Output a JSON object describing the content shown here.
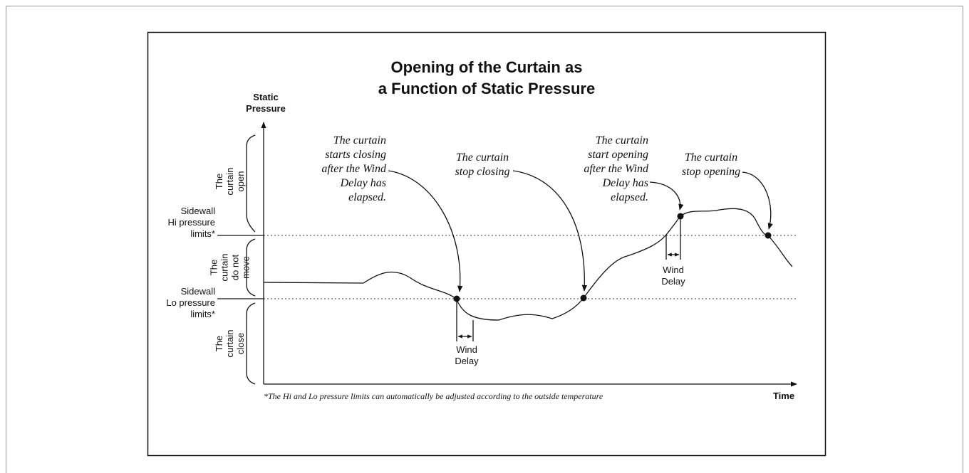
{
  "title": [
    "Opening of the Curtain as",
    "a Function of Static Pressure"
  ],
  "y_axis_label": [
    "Static",
    "Pressure"
  ],
  "x_axis_label": "Time",
  "limits": [
    {
      "lines": [
        "Sidewall",
        "Hi pressure",
        "limits*"
      ]
    },
    {
      "lines": [
        "Sidewall",
        "Lo pressure",
        "limits*"
      ]
    }
  ],
  "zones": [
    {
      "lines": [
        "The",
        "curtain",
        "open"
      ]
    },
    {
      "lines": [
        "The",
        "curtain",
        "do not",
        "move"
      ]
    },
    {
      "lines": [
        "The",
        "curtain",
        "close"
      ]
    }
  ],
  "annotations": [
    {
      "lines": [
        "The curtain",
        "starts closing",
        "after  the Wind",
        "Delay has",
        "elapsed."
      ]
    },
    {
      "lines": [
        "The curtain",
        "stop closing"
      ]
    },
    {
      "lines": [
        "The curtain",
        "start opening",
        "after the Wind",
        "Delay has",
        "elapsed."
      ]
    },
    {
      "lines": [
        "The curtain",
        "stop opening"
      ]
    }
  ],
  "wind_delay": [
    {
      "lines": [
        "Wind",
        "Delay"
      ]
    },
    {
      "lines": [
        "Wind",
        "Delay"
      ]
    }
  ],
  "footnote": "*The Hi and Lo pressure limits  can automatically be adjusted according to the outside temperature"
}
